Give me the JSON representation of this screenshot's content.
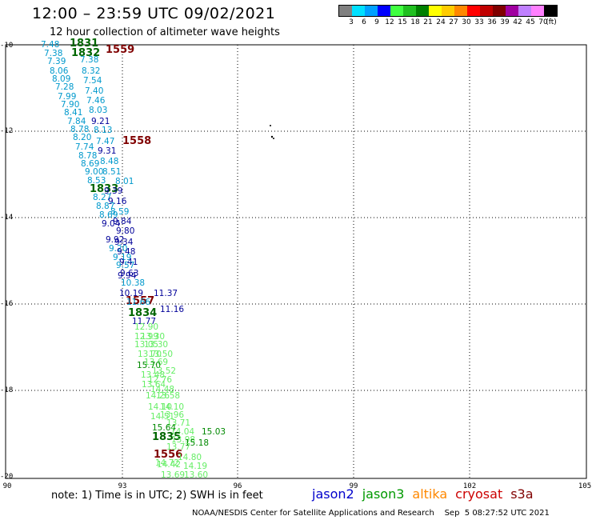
{
  "header": {
    "title": "12:00 – 23:59 UTC 09/02/2021",
    "subtitle": "12 hour collection of altimeter wave heights"
  },
  "legend": {
    "colors": [
      "#808080",
      "#00e0ff",
      "#00a0ff",
      "#0000ff",
      "#40ff40",
      "#20c020",
      "#008000",
      "#ffff00",
      "#ffcc00",
      "#ff8800",
      "#ff0000",
      "#c00000",
      "#800000",
      "#a000a0",
      "#c080ff",
      "#ff80ff",
      "#000000"
    ],
    "labels": [
      "3",
      "6",
      "9",
      "12",
      "15",
      "18",
      "21",
      "24",
      "27",
      "30",
      "33",
      "36",
      "39",
      "42",
      "45",
      "70",
      "(ft)"
    ]
  },
  "axes": {
    "y_labels": [
      "-10",
      "-12",
      "-14",
      "-16",
      "-18",
      "-20"
    ],
    "x_labels": [
      "90",
      "93",
      "96",
      "99",
      "102",
      "105"
    ]
  },
  "map": {
    "observations": [
      {
        "v": "7.48",
        "c": "#0099cc"
      },
      {
        "v": "1831",
        "c": "#006600",
        "time": true
      },
      {
        "v": "7.38",
        "c": "#0099cc"
      },
      {
        "v": "1832",
        "c": "#006600",
        "time": true
      },
      {
        "v": "1559",
        "c": "#800000",
        "time": true
      },
      {
        "v": "7.39",
        "c": "#0099cc"
      },
      {
        "v": "7.38",
        "c": "#0099cc"
      },
      {
        "v": "8.06",
        "c": "#0099cc"
      },
      {
        "v": "8.32",
        "c": "#0099cc"
      },
      {
        "v": "8.09",
        "c": "#0099cc"
      },
      {
        "v": "7.54",
        "c": "#0099cc"
      },
      {
        "v": "7.28",
        "c": "#0099cc"
      },
      {
        "v": "7.40",
        "c": "#0099cc"
      },
      {
        "v": "7.99",
        "c": "#0099cc"
      },
      {
        "v": "7.46",
        "c": "#0099cc"
      },
      {
        "v": "7.90",
        "c": "#0099cc"
      },
      {
        "v": "8.03",
        "c": "#0099cc"
      },
      {
        "v": "8.41",
        "c": "#0099cc"
      },
      {
        "v": "9.21",
        "c": "#000099"
      },
      {
        "v": "7.84",
        "c": "#0099cc"
      },
      {
        "v": "8.78",
        "c": "#0099cc"
      },
      {
        "v": "8.13",
        "c": "#0099cc"
      },
      {
        "v": "8.20",
        "c": "#0099cc"
      },
      {
        "v": "7.47",
        "c": "#0099cc"
      },
      {
        "v": "1558",
        "c": "#800000",
        "time": true
      },
      {
        "v": "7.74",
        "c": "#0099cc"
      },
      {
        "v": "9.31",
        "c": "#000099"
      },
      {
        "v": "8.78",
        "c": "#0099cc"
      },
      {
        "v": "8.48",
        "c": "#0099cc"
      },
      {
        "v": "8.69",
        "c": "#0099cc"
      },
      {
        "v": "9.00",
        "c": "#0099cc"
      },
      {
        "v": "8.53",
        "c": "#0099cc"
      },
      {
        "v": "8.51",
        "c": "#0099cc"
      },
      {
        "v": "8.01",
        "c": "#0099cc"
      },
      {
        "v": "1833",
        "c": "#006600",
        "time": true
      },
      {
        "v": "9.39",
        "c": "#000099"
      },
      {
        "v": "8.27",
        "c": "#0099cc"
      },
      {
        "v": "9.16",
        "c": "#000099"
      },
      {
        "v": "8.87",
        "c": "#0099cc"
      },
      {
        "v": "8.59",
        "c": "#0099cc"
      },
      {
        "v": "8.69",
        "c": "#0099cc"
      },
      {
        "v": "9.84",
        "c": "#000099"
      },
      {
        "v": "9.04",
        "c": "#000099"
      },
      {
        "v": "9.80",
        "c": "#000099"
      },
      {
        "v": "9.92",
        "c": "#000099"
      },
      {
        "v": "9.34",
        "c": "#000099"
      },
      {
        "v": "9.20",
        "c": "#0099cc"
      },
      {
        "v": "9.48",
        "c": "#000099"
      },
      {
        "v": "9.19",
        "c": "#0099cc"
      },
      {
        "v": "9.41",
        "c": "#000099"
      },
      {
        "v": "9.57",
        "c": "#0099cc"
      },
      {
        "v": "9.63",
        "c": "#000099"
      },
      {
        "v": "9.94",
        "c": "#000099"
      },
      {
        "v": "10.38",
        "c": "#0099cc"
      },
      {
        "v": "10.19",
        "c": "#000099"
      },
      {
        "v": "11.37",
        "c": "#000099"
      },
      {
        "v": "1557",
        "c": "#800000",
        "time": true
      },
      {
        "v": "11.66",
        "c": "#0099cc"
      },
      {
        "v": "11.16",
        "c": "#000099"
      },
      {
        "v": "1834",
        "c": "#006600",
        "time": true
      },
      {
        "v": "11.77",
        "c": "#000099"
      },
      {
        "v": "12.90",
        "c": "#66ee66"
      },
      {
        "v": "12.99",
        "c": "#66ee66"
      },
      {
        "v": "13.30",
        "c": "#66ee66"
      },
      {
        "v": "13.05",
        "c": "#66ee66"
      },
      {
        "v": "13.30",
        "c": "#66ee66"
      },
      {
        "v": "13.70",
        "c": "#66ee66"
      },
      {
        "v": "13.50",
        "c": "#66ee66"
      },
      {
        "v": "13.69",
        "c": "#66ee66"
      },
      {
        "v": "15.70",
        "c": "#008800"
      },
      {
        "v": "13.52",
        "c": "#66ee66"
      },
      {
        "v": "13.48",
        "c": "#66ee66"
      },
      {
        "v": "12.76",
        "c": "#66ee66"
      },
      {
        "v": "13.64",
        "c": "#66ee66"
      },
      {
        "v": "14.48",
        "c": "#66ee66"
      },
      {
        "v": "14.26",
        "c": "#66ee66"
      },
      {
        "v": "13.58",
        "c": "#66ee66"
      },
      {
        "v": "14.10",
        "c": "#66ee66"
      },
      {
        "v": "14.10",
        "c": "#66ee66"
      },
      {
        "v": "14.51",
        "c": "#66ee66"
      },
      {
        "v": "13.96",
        "c": "#66ee66"
      },
      {
        "v": "13.71",
        "c": "#66ee66"
      },
      {
        "v": "15.64",
        "c": "#008800"
      },
      {
        "v": "14.04",
        "c": "#66ee66"
      },
      {
        "v": "15.03",
        "c": "#008800"
      },
      {
        "v": "1835",
        "c": "#006600",
        "time": true
      },
      {
        "v": "13.98",
        "c": "#66ee66"
      },
      {
        "v": "15.18",
        "c": "#008800"
      },
      {
        "v": "1556",
        "c": "#800000",
        "time": true
      },
      {
        "v": "13.77",
        "c": "#66ee66"
      },
      {
        "v": "14.72",
        "c": "#66ee66"
      },
      {
        "v": "14.80",
        "c": "#66ee66"
      },
      {
        "v": "14.42",
        "c": "#66ee66"
      },
      {
        "v": "14.19",
        "c": "#66ee66"
      },
      {
        "v": "13.69",
        "c": "#66ee66"
      },
      {
        "v": "13.60",
        "c": "#66ee66"
      },
      {
        "v": "14.36",
        "c": "#66ee66"
      }
    ]
  },
  "notes": {
    "note": "note:  1) Time is in UTC;  2) SWH is in feet"
  },
  "satellites": [
    {
      "name": "jason2",
      "color": "#0000cc"
    },
    {
      "name": "jason3",
      "color": "#009900"
    },
    {
      "name": "altika",
      "color": "#ff8800"
    },
    {
      "name": "cryosat",
      "color": "#cc0000"
    },
    {
      "name": "s3a",
      "color": "#800000"
    }
  ],
  "footer": {
    "text": "NOAA/NESDIS Center for Satellite Applications and Research    Sep  5 08:27:52 UTC 2021"
  }
}
